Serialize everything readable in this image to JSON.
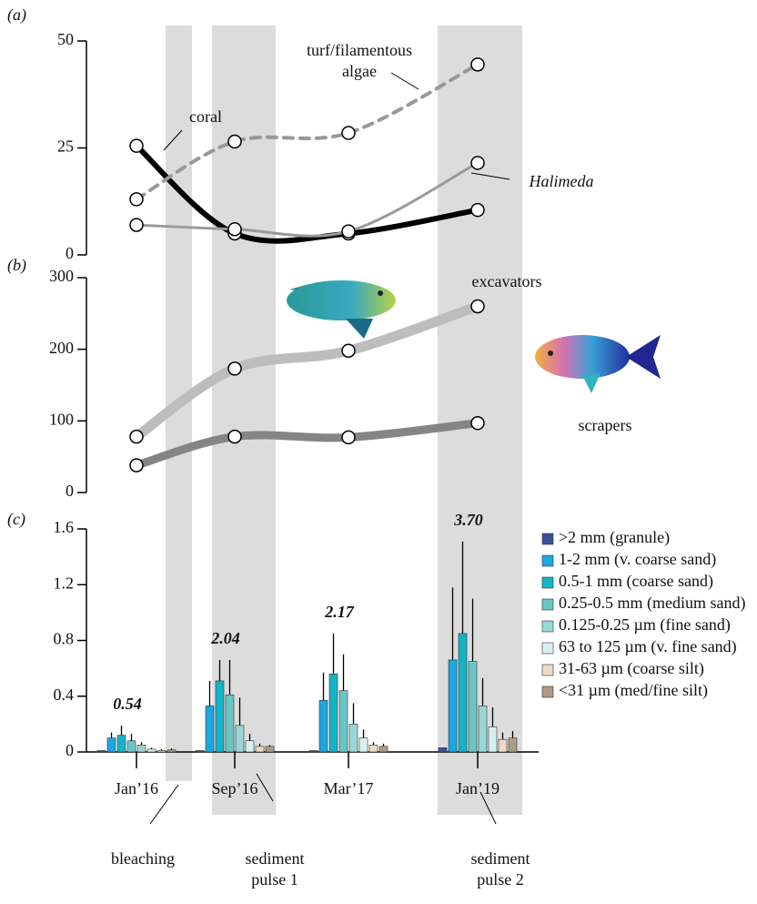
{
  "panel_labels": [
    "(a)",
    "(b)",
    "(c)"
  ],
  "annotations": [
    "bleaching",
    "sediment pulse 1",
    "sediment pulse 2"
  ],
  "chart_data": [
    {
      "type": "line",
      "ylim": [
        0,
        50
      ],
      "yticks": [
        0,
        25,
        50
      ],
      "series": [
        {
          "name": "coral",
          "color": "#000000",
          "line_style": "solid",
          "values": [
            25.5,
            5,
            5,
            10.5
          ]
        },
        {
          "name": "turf/filamentous algae",
          "color": "#999999",
          "line_style": "dashed",
          "values": [
            13,
            26.5,
            28.5,
            44.5
          ]
        },
        {
          "name": "Halimeda",
          "color": "#999999",
          "line_style": "solid",
          "values": [
            7,
            6,
            5.5,
            21.5
          ]
        }
      ]
    },
    {
      "type": "line",
      "ylim": [
        0,
        300
      ],
      "yticks": [
        0,
        100,
        200,
        300
      ],
      "series": [
        {
          "name": "excavators",
          "color": "#bdbdbd",
          "line_style": "solid",
          "values": [
            78,
            173,
            198,
            260
          ]
        },
        {
          "name": "scrapers",
          "color": "#858585",
          "line_style": "solid",
          "values": [
            38,
            78,
            77,
            97
          ]
        }
      ]
    },
    {
      "type": "bar",
      "categories": [
        "Jan’16",
        "Sep’16",
        "Mar’17",
        "Jan’19"
      ],
      "ylim": [
        0,
        1.6
      ],
      "yticks": [
        0,
        0.4,
        0.8,
        1.2,
        1.6
      ],
      "totals": [
        0.54,
        2.04,
        2.17,
        3.7
      ],
      "value_labels": [
        "0.54",
        "2.04",
        "2.17",
        "3.70"
      ],
      "series": [
        {
          "name": ">2 mm  (granule)",
          "color": "#3b4f9e",
          "values": [
            0.01,
            0.01,
            0.01,
            0.03
          ],
          "errors": [
            0,
            0,
            0,
            0
          ]
        },
        {
          "name": "1-2 mm (v. coarse sand)",
          "color": "#1ea6e0",
          "values": [
            0.1,
            0.33,
            0.37,
            0.66
          ],
          "errors": [
            0.04,
            0.18,
            0.2,
            0.52
          ]
        },
        {
          "name": "0.5-1 mm (coarse sand)",
          "color": "#14b3c6",
          "values": [
            0.12,
            0.51,
            0.56,
            0.85
          ],
          "errors": [
            0.07,
            0.15,
            0.29,
            0.66
          ]
        },
        {
          "name": "0.25-0.5 mm (medium sand)",
          "color": "#6ac6c6",
          "values": [
            0.08,
            0.41,
            0.44,
            0.65
          ],
          "errors": [
            0.05,
            0.25,
            0.26,
            0.45
          ]
        },
        {
          "name": "0.125-0.25 µm (fine sand)",
          "color": "#9ad6d6",
          "values": [
            0.05,
            0.19,
            0.2,
            0.33
          ],
          "errors": [
            0.02,
            0.2,
            0.15,
            0.2
          ]
        },
        {
          "name": "63 to 125 µm (v. fine sand)",
          "color": "#d6f0ef",
          "values": [
            0.02,
            0.08,
            0.1,
            0.18
          ],
          "errors": [
            0.01,
            0.05,
            0.06,
            0.14
          ]
        },
        {
          "name": "31-63 µm (coarse silt)",
          "color": "#f0d9c0",
          "values": [
            0.01,
            0.04,
            0.05,
            0.09
          ],
          "errors": [
            0.01,
            0.02,
            0.02,
            0.05
          ]
        },
        {
          "name": "<31 µm (med/fine silt)",
          "color": "#ae9a86",
          "values": [
            0.015,
            0.04,
            0.04,
            0.1
          ],
          "errors": [
            0.01,
            0.01,
            0.02,
            0.05
          ]
        }
      ]
    }
  ]
}
